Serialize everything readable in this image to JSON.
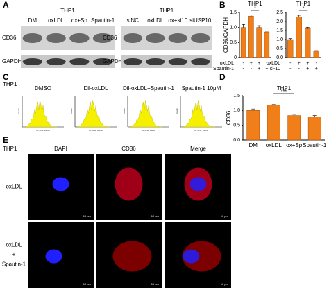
{
  "panel_labels": [
    "A",
    "B",
    "C",
    "D",
    "E"
  ],
  "blots": [
    {
      "title": "THP1",
      "lanes": [
        "DM",
        "oxLDL",
        "ox+Sp",
        "Spautin-1"
      ],
      "rows": [
        "CD36",
        "GAPDH"
      ]
    },
    {
      "title": "THP1",
      "lanes": [
        "siNC",
        "oxLDL",
        "ox+si10",
        "siUSP10"
      ],
      "rows": [
        "CD36",
        "GAPDH"
      ]
    }
  ],
  "flow": {
    "cell": "THP1",
    "y_label": "Count",
    "x_label": "FITC-A: CD36",
    "panels": [
      "DMSO",
      "Dil-oxLDL",
      "Dil-oxLDL+Spautin-1",
      "Spautin-1 10μM"
    ]
  },
  "microscopy": {
    "cell": "THP1",
    "columns": [
      "DAPI",
      "CD36",
      "Merge"
    ],
    "rows": [
      [
        "oxLDL"
      ],
      [
        "oxLDL",
        "+",
        "Spautin-1"
      ]
    ],
    "scale": "10 μm"
  },
  "chart_data": [
    {
      "type": "bar",
      "title": "THP1",
      "y_label": "CD36/GAPDH",
      "color": "#f07f1a",
      "values": [
        1.0,
        1.38,
        1.0,
        0.85
      ],
      "errors": [
        0.1,
        0.04,
        0.06,
        0.03
      ],
      "ylim": [
        0,
        1.5
      ],
      "yticks": [
        0,
        0.5,
        {
          "value": 1,
          "label": "1.0"
        },
        {
          "value": 1.5,
          "label": "1.5"
        }
      ],
      "annotation": "*",
      "conditions": [
        {
          "name": "oxLDL",
          "signs": [
            "-",
            "+",
            "+",
            "-"
          ]
        },
        {
          "name": "Spautin-1",
          "signs": [
            "-",
            "-",
            "+",
            "+"
          ]
        }
      ]
    },
    {
      "type": "bar",
      "title": "THP1",
      "color": "#f07f1a",
      "values": [
        1.0,
        2.25,
        1.6,
        0.35
      ],
      "errors": [
        0.05,
        0.1,
        0.08,
        0.03
      ],
      "ylim": [
        0,
        2.5
      ],
      "yticks": [
        {
          "value": 0,
          "label": "0.0"
        },
        0.5,
        {
          "value": 1,
          "label": "1.0"
        },
        1.5,
        {
          "value": 2,
          "label": "2.0"
        },
        2.5
      ],
      "annotation": "*",
      "conditions": [
        {
          "name": "oxLDL",
          "signs": [
            "-",
            "+",
            "+",
            "-"
          ]
        },
        {
          "name": "si-10",
          "signs": [
            "-",
            "-",
            "+",
            "+"
          ]
        }
      ]
    },
    {
      "type": "bar",
      "title": "THP1",
      "y_label": "CD36",
      "color": "#f07f1a",
      "categories": [
        "DM",
        "oxLDL",
        "ox+Sp",
        "Spautin-1"
      ],
      "values": [
        1.0,
        1.18,
        0.83,
        0.78
      ],
      "errors": [
        0.05,
        0.02,
        0.04,
        0.05
      ],
      "ylim": [
        0,
        1.5
      ],
      "yticks": [
        {
          "value": 0,
          "label": "0.0"
        },
        0.5,
        {
          "value": 1,
          "label": "1.0"
        },
        {
          "value": 1.5,
          "label": "1.5"
        }
      ],
      "annotation": "***"
    }
  ]
}
